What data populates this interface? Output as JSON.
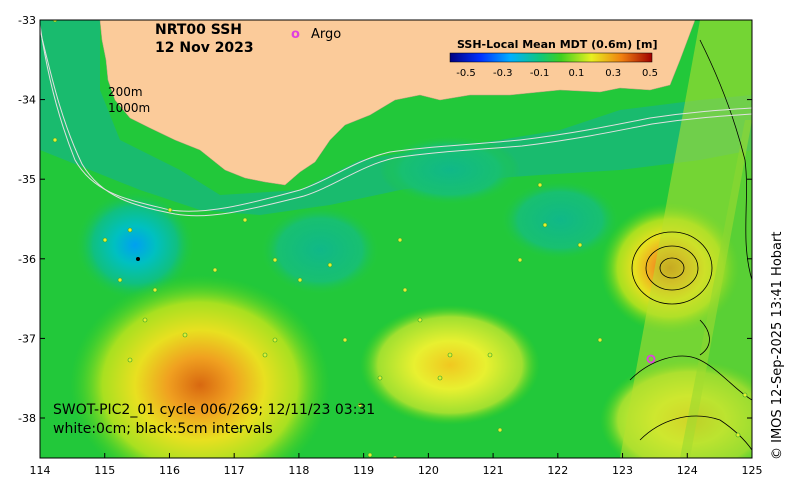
{
  "map": {
    "title_line1": "NRT00 SSH",
    "title_line2": "12 Nov 2023",
    "legend_argo_marker": "o",
    "legend_argo_label": "Argo",
    "isobath_label_200": "200m",
    "isobath_label_1000": "1000m",
    "satellite_line1": "SWOT-PIC2_01 cycle 006/269; 12/11/23 03:31",
    "satellite_line2": "white:0cm; black:5cm intervals",
    "copyright": "© IMOS 12-Sep-2025 13:41 Hobart",
    "x_ticks": [
      "114",
      "115",
      "116",
      "117",
      "118",
      "119",
      "120",
      "121",
      "122",
      "123",
      "124",
      "125"
    ],
    "y_ticks": [
      "-33",
      "-34",
      "-35",
      "-36",
      "-37",
      "-38"
    ],
    "colorbar": {
      "title": "SSH-Local Mean MDT (0.6m) [m]",
      "labels": [
        "-0.5",
        "-0.3",
        "-0.1",
        "0.1",
        "0.3",
        "0.5"
      ]
    },
    "colors": {
      "land": "#fbcb9a",
      "ocean_base": "#22c83a",
      "argo": "#e040e0"
    }
  }
}
